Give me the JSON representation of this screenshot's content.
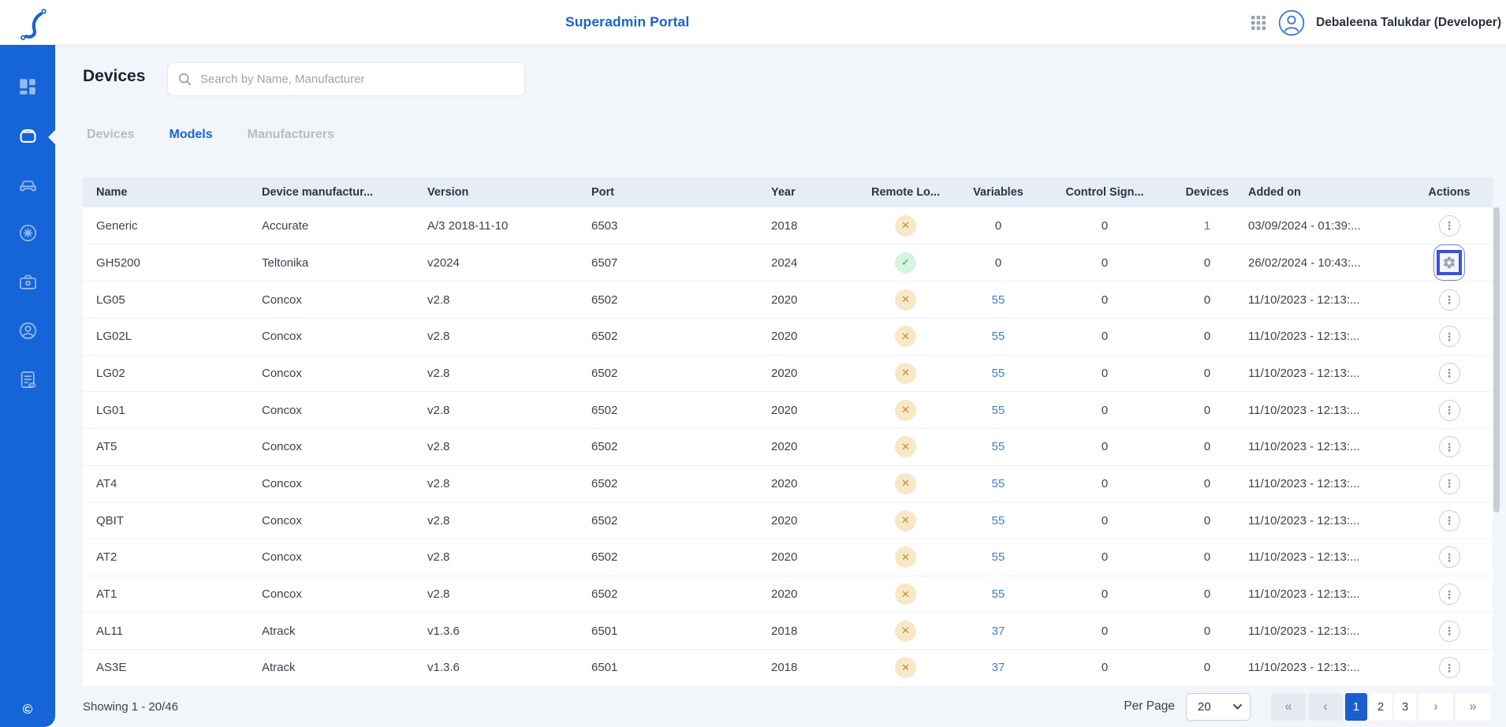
{
  "header": {
    "title": "Superadmin Portal",
    "user_name": "Debaleena Talukdar (Developer)"
  },
  "sidebar": {
    "icons": [
      "dashboard",
      "device-models",
      "vehicles",
      "climate",
      "toolbox",
      "accounts",
      "reports"
    ],
    "active_icon": "device-models",
    "copyright": "©"
  },
  "page": {
    "title": "Devices",
    "search": {
      "placeholder": "Search by Name, Manufacturer"
    },
    "tabs": [
      {
        "label": "Devices",
        "active": false
      },
      {
        "label": "Models",
        "active": true
      },
      {
        "label": "Manufacturers",
        "active": false
      }
    ]
  },
  "table": {
    "columns": [
      "Name",
      "Device manufactur...",
      "Version",
      "Port",
      "Year",
      "Remote Lo...",
      "Variables",
      "Control Sign...",
      "Devices",
      "Added on",
      "Actions"
    ],
    "icons": {
      "cross": "✕",
      "check": "✓",
      "menu": "⋮"
    },
    "rows": [
      {
        "name": "Generic",
        "manufacturer": "Accurate",
        "version": "A/3 2018-11-10",
        "port": "6503",
        "year": "2018",
        "remote": "cross",
        "variables": "0",
        "variables_link": false,
        "control_signals": "0",
        "devices": "1",
        "devices_link": true,
        "added_on": "03/09/2024 - 01:39:...",
        "action": "menu"
      },
      {
        "name": "GH5200",
        "manufacturer": "Teltonika",
        "version": "v2024",
        "port": "6507",
        "year": "2024",
        "remote": "check",
        "variables": "0",
        "variables_link": false,
        "control_signals": "0",
        "devices": "0",
        "devices_link": false,
        "added_on": "26/02/2024 - 10:43:...",
        "action": "gear"
      },
      {
        "name": "LG05",
        "manufacturer": "Concox",
        "version": "v2.8",
        "port": "6502",
        "year": "2020",
        "remote": "cross",
        "variables": "55",
        "variables_link": true,
        "control_signals": "0",
        "devices": "0",
        "devices_link": false,
        "added_on": "11/10/2023 - 12:13:...",
        "action": "menu"
      },
      {
        "name": "LG02L",
        "manufacturer": "Concox",
        "version": "v2.8",
        "port": "6502",
        "year": "2020",
        "remote": "cross",
        "variables": "55",
        "variables_link": true,
        "control_signals": "0",
        "devices": "0",
        "devices_link": false,
        "added_on": "11/10/2023 - 12:13:...",
        "action": "menu"
      },
      {
        "name": "LG02",
        "manufacturer": "Concox",
        "version": "v2.8",
        "port": "6502",
        "year": "2020",
        "remote": "cross",
        "variables": "55",
        "variables_link": true,
        "control_signals": "0",
        "devices": "0",
        "devices_link": false,
        "added_on": "11/10/2023 - 12:13:...",
        "action": "menu"
      },
      {
        "name": "LG01",
        "manufacturer": "Concox",
        "version": "v2.8",
        "port": "6502",
        "year": "2020",
        "remote": "cross",
        "variables": "55",
        "variables_link": true,
        "control_signals": "0",
        "devices": "0",
        "devices_link": false,
        "added_on": "11/10/2023 - 12:13:...",
        "action": "menu"
      },
      {
        "name": "AT5",
        "manufacturer": "Concox",
        "version": "v2.8",
        "port": "6502",
        "year": "2020",
        "remote": "cross",
        "variables": "55",
        "variables_link": true,
        "control_signals": "0",
        "devices": "0",
        "devices_link": false,
        "added_on": "11/10/2023 - 12:13:...",
        "action": "menu"
      },
      {
        "name": "AT4",
        "manufacturer": "Concox",
        "version": "v2.8",
        "port": "6502",
        "year": "2020",
        "remote": "cross",
        "variables": "55",
        "variables_link": true,
        "control_signals": "0",
        "devices": "0",
        "devices_link": false,
        "added_on": "11/10/2023 - 12:13:...",
        "action": "menu"
      },
      {
        "name": "QBIT",
        "manufacturer": "Concox",
        "version": "v2.8",
        "port": "6502",
        "year": "2020",
        "remote": "cross",
        "variables": "55",
        "variables_link": true,
        "control_signals": "0",
        "devices": "0",
        "devices_link": false,
        "added_on": "11/10/2023 - 12:13:...",
        "action": "menu"
      },
      {
        "name": "AT2",
        "manufacturer": "Concox",
        "version": "v2.8",
        "port": "6502",
        "year": "2020",
        "remote": "cross",
        "variables": "55",
        "variables_link": true,
        "control_signals": "0",
        "devices": "0",
        "devices_link": false,
        "added_on": "11/10/2023 - 12:13:...",
        "action": "menu"
      },
      {
        "name": "AT1",
        "manufacturer": "Concox",
        "version": "v2.8",
        "port": "6502",
        "year": "2020",
        "remote": "cross",
        "variables": "55",
        "variables_link": true,
        "control_signals": "0",
        "devices": "0",
        "devices_link": false,
        "added_on": "11/10/2023 - 12:13:...",
        "action": "menu"
      },
      {
        "name": "AL11",
        "manufacturer": "Atrack",
        "version": "v1.3.6",
        "port": "6501",
        "year": "2018",
        "remote": "cross",
        "variables": "37",
        "variables_link": true,
        "control_signals": "0",
        "devices": "0",
        "devices_link": false,
        "added_on": "11/10/2023 - 12:13:...",
        "action": "menu"
      },
      {
        "name": "AS3E",
        "manufacturer": "Atrack",
        "version": "v1.3.6",
        "port": "6501",
        "year": "2018",
        "remote": "cross",
        "variables": "37",
        "variables_link": true,
        "control_signals": "0",
        "devices": "0",
        "devices_link": false,
        "added_on": "11/10/2023 - 12:13:...",
        "action": "menu"
      }
    ]
  },
  "footer": {
    "showing": "Showing 1 - 20/46",
    "per_page_label": "Per Page",
    "per_page_value": "20",
    "pages": [
      "1",
      "2",
      "3"
    ],
    "active_page": "1",
    "nav_icons": {
      "first": "«",
      "prev": "‹",
      "next": "›",
      "last": "»"
    }
  }
}
